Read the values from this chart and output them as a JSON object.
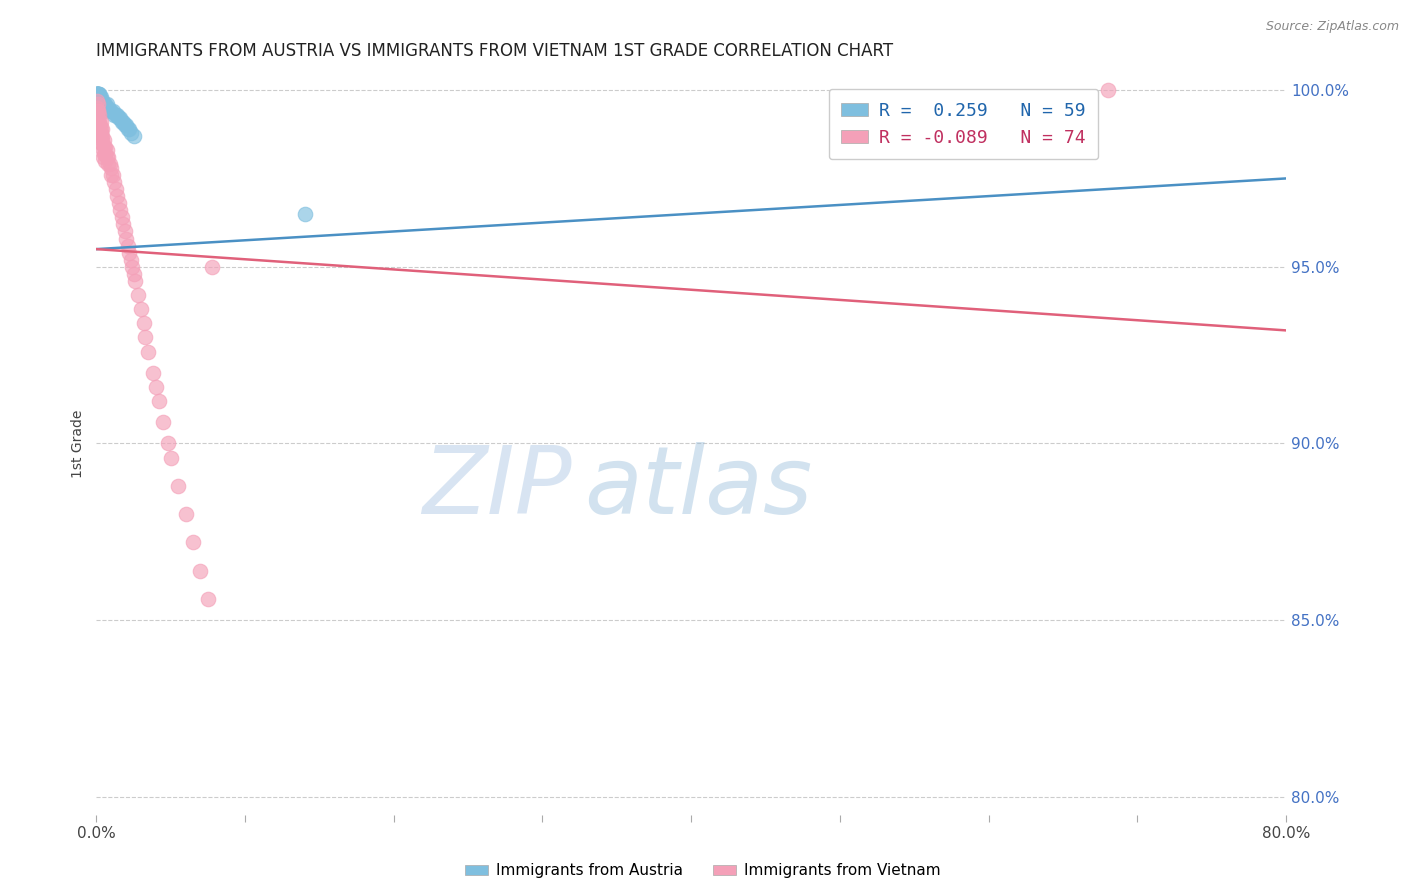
{
  "title": "IMMIGRANTS FROM AUSTRIA VS IMMIGRANTS FROM VIETNAM 1ST GRADE CORRELATION CHART",
  "source": "Source: ZipAtlas.com",
  "ylabel": "1st Grade",
  "austria_R": 0.259,
  "austria_N": 59,
  "vietnam_R": -0.089,
  "vietnam_N": 74,
  "austria_color": "#7fbfdf",
  "vietnam_color": "#f4a0b8",
  "austria_line_color": "#4a90c4",
  "vietnam_line_color": "#e0607a",
  "watermark_zip": "ZIP",
  "watermark_atlas": "atlas",
  "xlim": [
    0.0,
    0.8
  ],
  "ylim": [
    0.795,
    1.005
  ],
  "xtick_vals": [
    0.0,
    0.1,
    0.2,
    0.3,
    0.4,
    0.5,
    0.6,
    0.7,
    0.8
  ],
  "yticks_right": [
    0.8,
    0.85,
    0.9,
    0.95,
    1.0
  ],
  "grid_color": "#cccccc",
  "background_color": "#ffffff",
  "austria_x": [
    0.0002,
    0.0003,
    0.0004,
    0.0005,
    0.0006,
    0.0007,
    0.0008,
    0.0009,
    0.001,
    0.001,
    0.001,
    0.0012,
    0.0013,
    0.0014,
    0.0015,
    0.0016,
    0.0017,
    0.0018,
    0.002,
    0.002,
    0.002,
    0.002,
    0.0022,
    0.0024,
    0.0026,
    0.003,
    0.003,
    0.003,
    0.0032,
    0.0034,
    0.0036,
    0.004,
    0.004,
    0.004,
    0.0042,
    0.005,
    0.005,
    0.006,
    0.006,
    0.007,
    0.007,
    0.008,
    0.009,
    0.01,
    0.011,
    0.012,
    0.013,
    0.014,
    0.015,
    0.016,
    0.017,
    0.018,
    0.019,
    0.02,
    0.021,
    0.022,
    0.023,
    0.025,
    0.14
  ],
  "austria_y": [
    0.999,
    0.999,
    0.999,
    0.999,
    0.999,
    0.999,
    0.999,
    0.999,
    0.999,
    0.998,
    0.997,
    0.999,
    0.998,
    0.997,
    0.999,
    0.998,
    0.997,
    0.996,
    0.999,
    0.998,
    0.997,
    0.996,
    0.998,
    0.997,
    0.996,
    0.998,
    0.997,
    0.996,
    0.997,
    0.996,
    0.995,
    0.997,
    0.996,
    0.995,
    0.994,
    0.996,
    0.995,
    0.996,
    0.995,
    0.996,
    0.995,
    0.995,
    0.994,
    0.994,
    0.994,
    0.993,
    0.993,
    0.993,
    0.992,
    0.992,
    0.991,
    0.991,
    0.99,
    0.99,
    0.989,
    0.989,
    0.988,
    0.987,
    0.965
  ],
  "vietnam_x": [
    0.0003,
    0.0005,
    0.0007,
    0.001,
    0.001,
    0.001,
    0.001,
    0.0012,
    0.0014,
    0.0016,
    0.0018,
    0.002,
    0.002,
    0.002,
    0.0022,
    0.0024,
    0.003,
    0.003,
    0.003,
    0.003,
    0.0032,
    0.0035,
    0.004,
    0.004,
    0.004,
    0.0042,
    0.0045,
    0.005,
    0.005,
    0.005,
    0.006,
    0.006,
    0.006,
    0.007,
    0.007,
    0.008,
    0.008,
    0.009,
    0.01,
    0.01,
    0.011,
    0.012,
    0.013,
    0.014,
    0.015,
    0.016,
    0.017,
    0.018,
    0.019,
    0.02,
    0.021,
    0.022,
    0.023,
    0.024,
    0.025,
    0.026,
    0.028,
    0.03,
    0.032,
    0.033,
    0.035,
    0.038,
    0.04,
    0.042,
    0.045,
    0.048,
    0.05,
    0.055,
    0.06,
    0.065,
    0.07,
    0.075,
    0.078,
    0.68
  ],
  "vietnam_y": [
    0.997,
    0.995,
    0.993,
    0.996,
    0.994,
    0.992,
    0.99,
    0.994,
    0.992,
    0.99,
    0.988,
    0.993,
    0.991,
    0.989,
    0.99,
    0.988,
    0.991,
    0.989,
    0.987,
    0.985,
    0.988,
    0.986,
    0.989,
    0.987,
    0.985,
    0.983,
    0.981,
    0.986,
    0.984,
    0.982,
    0.984,
    0.982,
    0.98,
    0.983,
    0.981,
    0.981,
    0.979,
    0.979,
    0.978,
    0.976,
    0.976,
    0.974,
    0.972,
    0.97,
    0.968,
    0.966,
    0.964,
    0.962,
    0.96,
    0.958,
    0.956,
    0.954,
    0.952,
    0.95,
    0.948,
    0.946,
    0.942,
    0.938,
    0.934,
    0.93,
    0.926,
    0.92,
    0.916,
    0.912,
    0.906,
    0.9,
    0.896,
    0.888,
    0.88,
    0.872,
    0.864,
    0.856,
    0.95,
    1.0
  ],
  "austria_trend_x": [
    0.0,
    0.8
  ],
  "austria_trend_y": [
    0.955,
    0.975
  ],
  "vietnam_trend_x": [
    0.0,
    0.8
  ],
  "vietnam_trend_y": [
    0.955,
    0.932
  ]
}
